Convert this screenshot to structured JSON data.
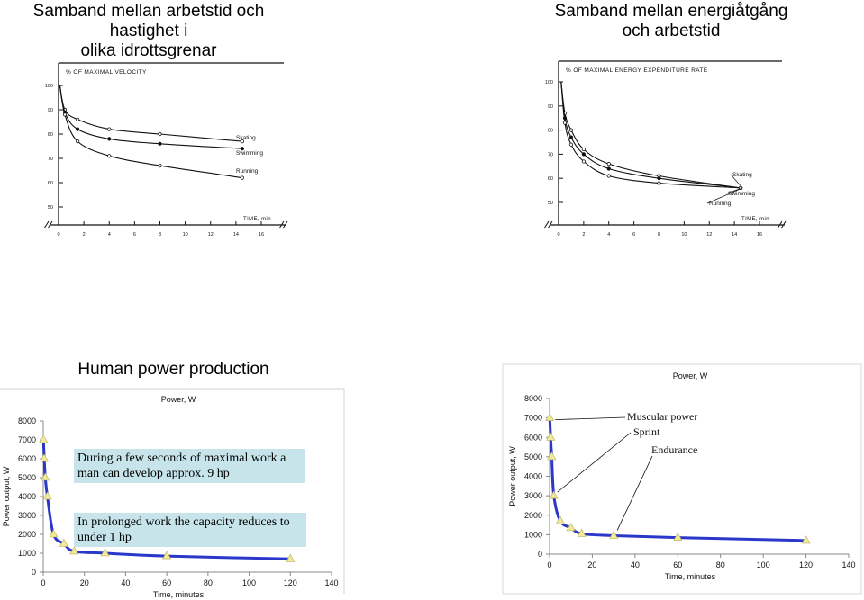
{
  "headings": {
    "left_line1": "Samband mellan arbetstid och hastighet i",
    "left_line2": "olika idrottsgrenar",
    "right_line1": "Samband mellan energiåtgång",
    "right_line2": "och arbetstid",
    "middle_title": "Human power production"
  },
  "captions": {
    "maximal_work": "During a few seconds of maximal work a man can develop approx. 9 hp",
    "prolonged_work": "In prolonged work the capacity reduces to under 1 hp"
  },
  "colors": {
    "curve": "#2a37c8",
    "marker": "#f0ea9a",
    "caption_bg": "#c6e4ea"
  },
  "chart_data": [
    {
      "type": "line",
      "title": "% OF MAXIMAL VELOCITY",
      "xlabel": "TIME, min",
      "xlim": [
        0,
        16
      ],
      "ylim": [
        50,
        100
      ],
      "xticks": [
        0,
        2,
        4,
        6,
        8,
        10,
        12,
        14,
        16
      ],
      "yticks": [
        50,
        60,
        70,
        80,
        90,
        100
      ],
      "series": [
        {
          "name": "Skating",
          "x": [
            0.1,
            0.5,
            1.5,
            4,
            8,
            14.5
          ],
          "values": [
            100,
            90,
            86,
            82,
            80,
            77
          ]
        },
        {
          "name": "Swimming",
          "x": [
            0.1,
            0.5,
            1.5,
            4,
            8,
            14.5
          ],
          "values": [
            100,
            89,
            82,
            78,
            76,
            74
          ]
        },
        {
          "name": "Running",
          "x": [
            0.1,
            0.5,
            1.5,
            4,
            8,
            14.5
          ],
          "values": [
            100,
            88,
            77,
            71,
            67,
            62
          ]
        }
      ]
    },
    {
      "type": "line",
      "title": "% OF MAXIMAL ENERGY EXPENDITURE RATE",
      "xlabel": "TIME, min",
      "xlim": [
        0,
        16
      ],
      "ylim": [
        50,
        100
      ],
      "xticks": [
        0,
        2,
        4,
        6,
        8,
        10,
        12,
        14,
        16
      ],
      "yticks": [
        50,
        60,
        70,
        80,
        90,
        100
      ],
      "series": [
        {
          "name": "Skating",
          "x": [
            0.2,
            0.5,
            1,
            2,
            4,
            8,
            14.5
          ],
          "values": [
            100,
            87,
            80,
            72,
            66,
            61,
            56
          ]
        },
        {
          "name": "Swimming",
          "x": [
            0.2,
            0.5,
            1,
            2,
            4,
            8,
            14.5
          ],
          "values": [
            100,
            85,
            77,
            70,
            64,
            60,
            56
          ]
        },
        {
          "name": "Running",
          "x": [
            0.2,
            0.5,
            1,
            2,
            4,
            8,
            14.5
          ],
          "values": [
            100,
            83,
            74,
            67,
            61,
            58,
            56
          ]
        }
      ]
    },
    {
      "type": "line",
      "title": "Power, W",
      "xlabel": "Time, minutes",
      "ylabel": "Power output, W",
      "xlim": [
        0,
        140
      ],
      "ylim": [
        0,
        8000
      ],
      "xticks": [
        0,
        20,
        40,
        60,
        80,
        100,
        120,
        140
      ],
      "yticks": [
        0,
        1000,
        2000,
        3000,
        4000,
        5000,
        6000,
        7000,
        8000
      ],
      "series": [
        {
          "name": "Power, W",
          "x": [
            0.1,
            0.5,
            1,
            2,
            5,
            10,
            15,
            30,
            60,
            120
          ],
          "values": [
            7000,
            6000,
            5000,
            4000,
            2000,
            1500,
            1100,
            1000,
            850,
            700
          ]
        }
      ]
    },
    {
      "type": "line",
      "title": "Power, W",
      "xlabel": "Time, minutes",
      "ylabel": "Power output, W",
      "xlim": [
        0,
        140
      ],
      "ylim": [
        0,
        8000
      ],
      "xticks": [
        0,
        20,
        40,
        60,
        80,
        100,
        120,
        140
      ],
      "yticks": [
        0,
        1000,
        2000,
        3000,
        4000,
        5000,
        6000,
        7000,
        8000
      ],
      "annotations": [
        "Muscular power",
        "Sprint",
        "Endurance"
      ],
      "series": [
        {
          "name": "Power, W",
          "x": [
            0.1,
            0.5,
            1,
            2,
            5,
            10,
            15,
            30,
            60,
            120
          ],
          "values": [
            7000,
            6000,
            5000,
            3000,
            1700,
            1350,
            1050,
            950,
            850,
            700
          ]
        }
      ]
    }
  ]
}
